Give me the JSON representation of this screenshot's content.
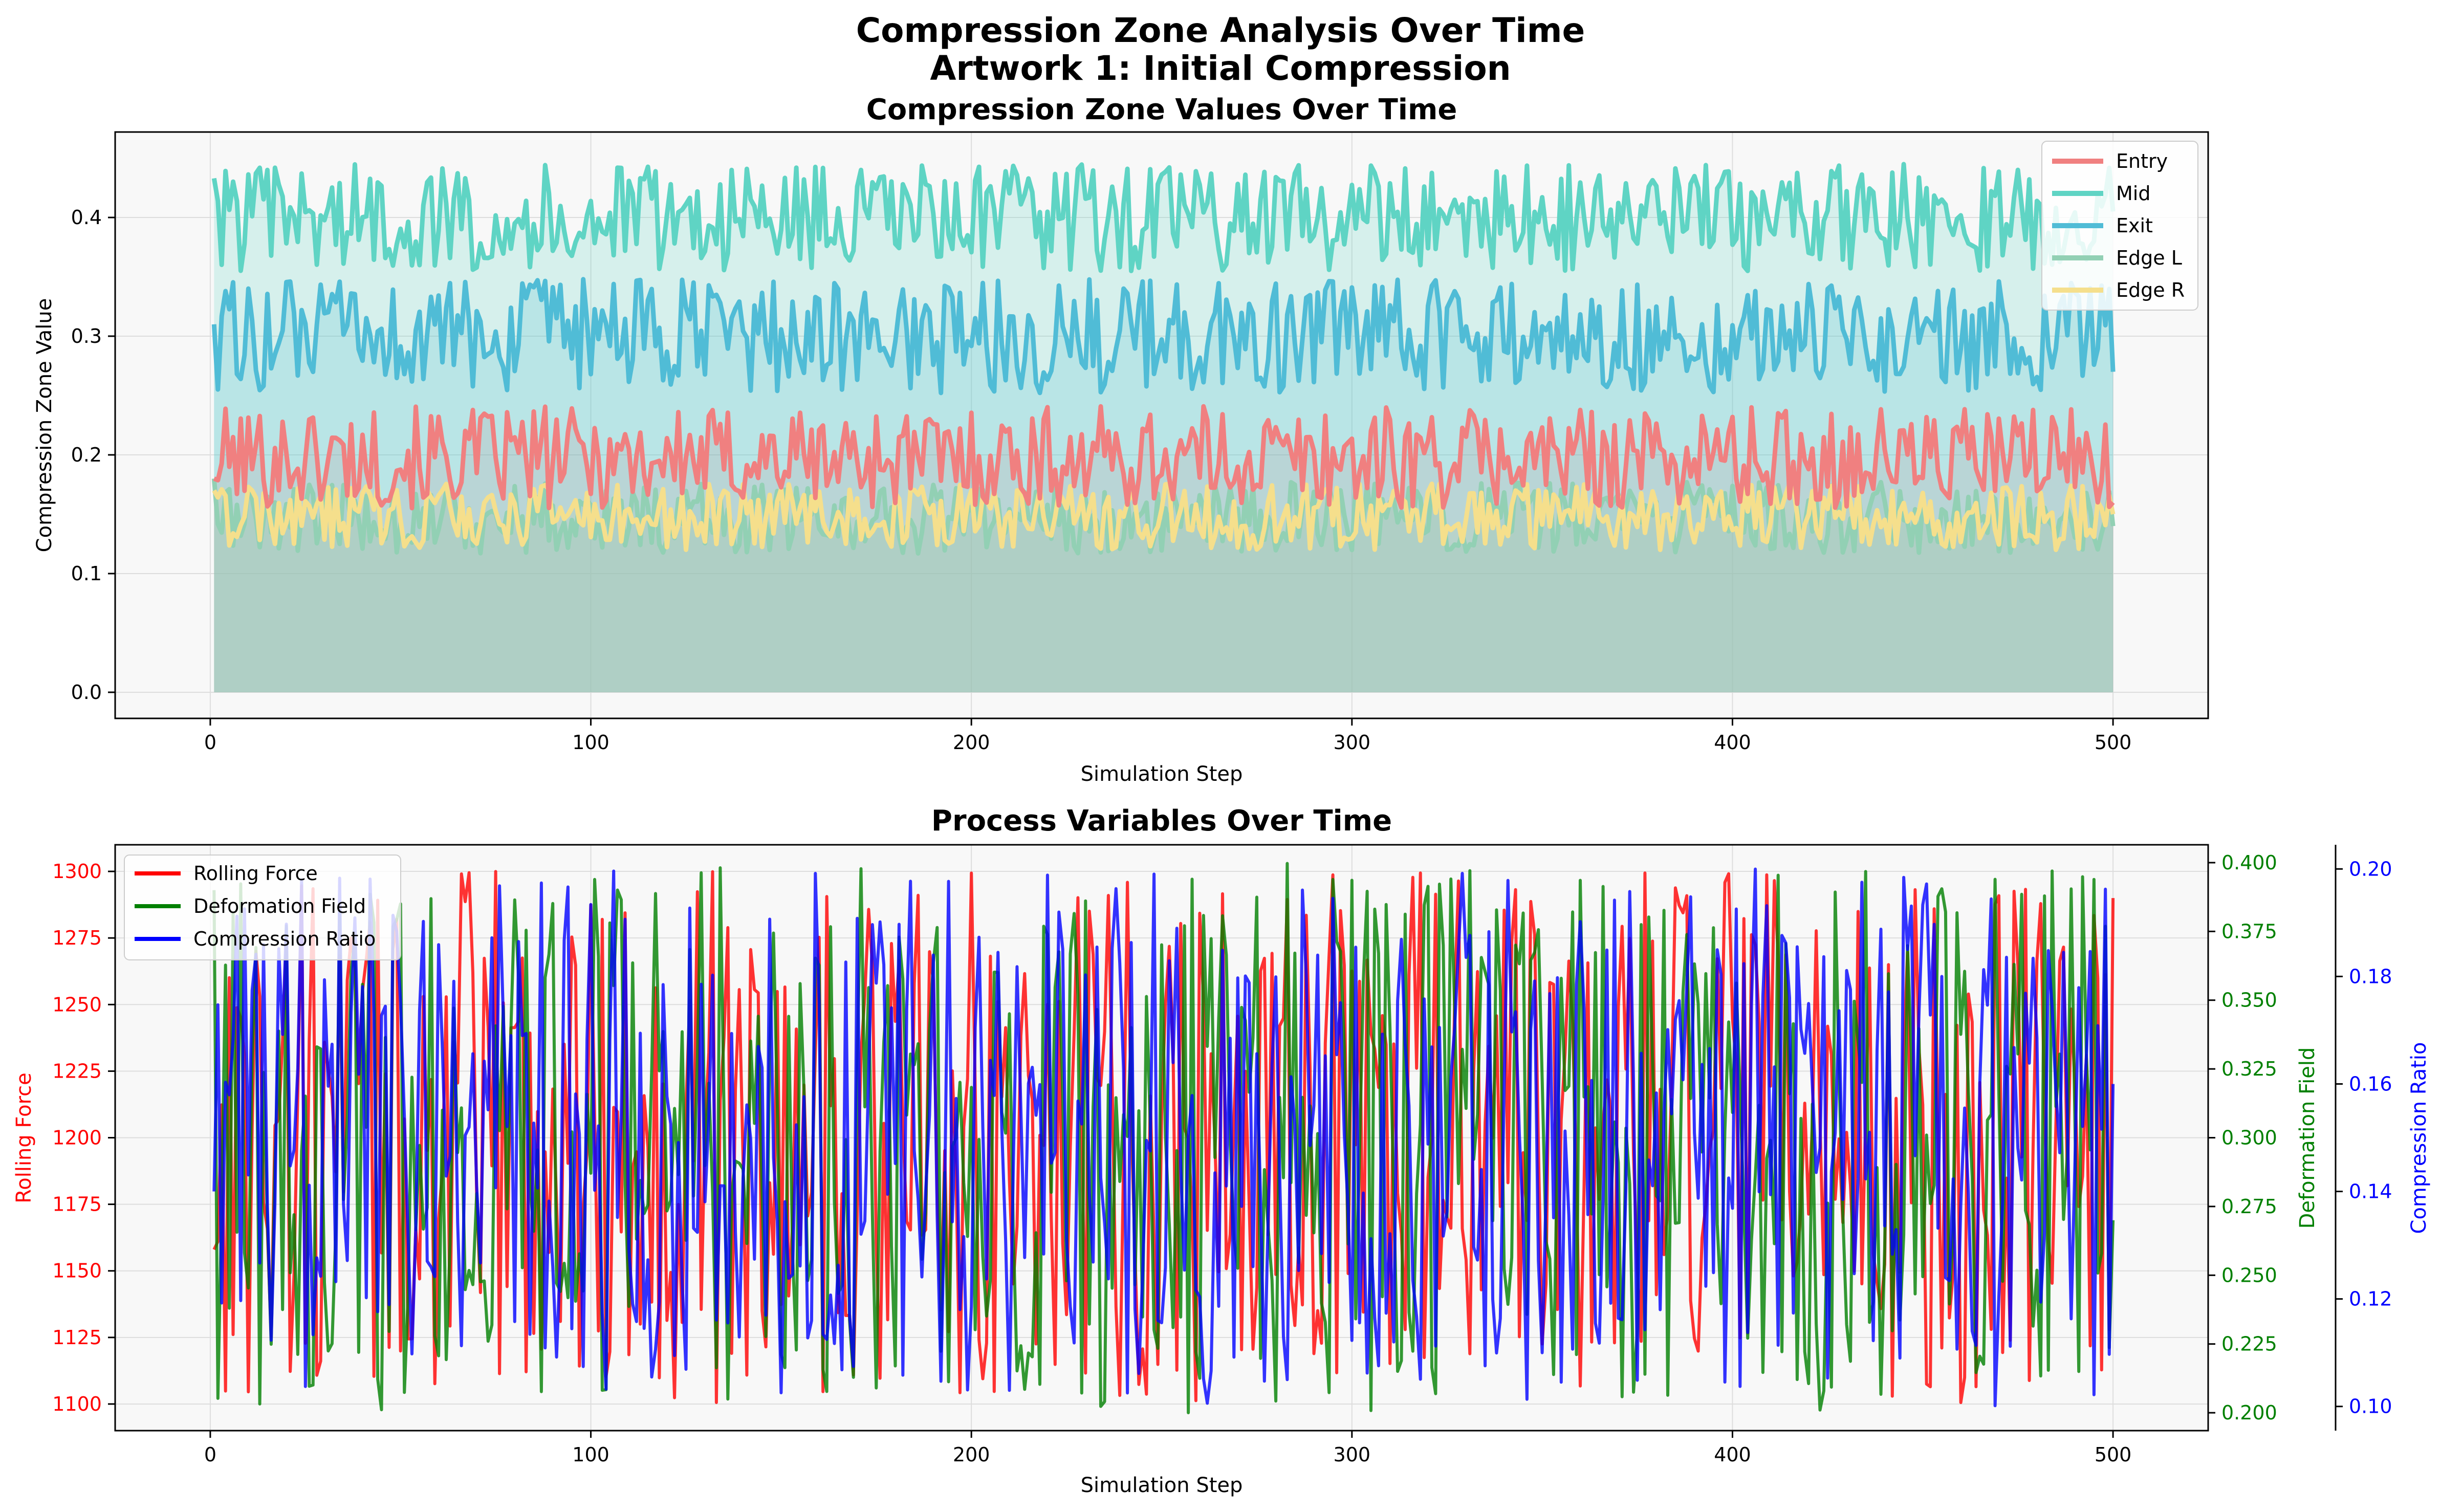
{
  "figure": {
    "suptitle_line1": "Compression Zone Analysis Over Time",
    "suptitle_line2": "Artwork 1: Initial Compression"
  },
  "chart_data": [
    {
      "type": "area",
      "title": "Compression Zone Values Over Time",
      "xlabel": "Simulation Step",
      "ylabel": "Compression Zone Value",
      "xlim": [
        -25,
        525
      ],
      "ylim": [
        -0.022,
        0.472
      ],
      "xticks": [
        0,
        100,
        200,
        300,
        400,
        500
      ],
      "yticks": [
        0.0,
        0.1,
        0.2,
        0.3,
        0.4
      ],
      "grid": true,
      "legend_position": "top-right",
      "x": {
        "start": 1,
        "end": 500,
        "step": 1
      },
      "series": [
        {
          "name": "Entry",
          "color": "#f08080",
          "center": 0.198,
          "amplitude": 0.043,
          "first": 0.18,
          "last": 0.16
        },
        {
          "name": "Mid",
          "color": "#5fd4c4",
          "center": 0.4,
          "amplitude": 0.045,
          "first": 0.433,
          "last": 0.405
        },
        {
          "name": "Exit",
          "color": "#50bcd6",
          "center": 0.3,
          "amplitude": 0.048,
          "first": 0.31,
          "last": 0.27
        },
        {
          "name": "Edge L",
          "color": "#92d0b4",
          "center": 0.147,
          "amplitude": 0.03,
          "first": 0.18,
          "last": 0.14
        },
        {
          "name": "Edge R",
          "color": "#f5df8c",
          "center": 0.148,
          "amplitude": 0.028,
          "first": 0.17,
          "last": 0.15
        }
      ]
    },
    {
      "type": "line",
      "title": "Process Variables Over Time",
      "xlabel": "Simulation Step",
      "xlim": [
        -25,
        525
      ],
      "xticks": [
        0,
        100,
        200,
        300,
        400,
        500
      ],
      "grid": true,
      "legend_position": "top-left",
      "x": {
        "start": 1,
        "end": 500,
        "step": 1
      },
      "axes": [
        {
          "side": "left",
          "label": "Rolling Force",
          "color": "#ff0000",
          "ylim": [
            1090,
            1310
          ],
          "yticks": [
            1100,
            1125,
            1150,
            1175,
            1200,
            1225,
            1250,
            1275,
            1300
          ]
        },
        {
          "side": "right",
          "label": "Deformation Field",
          "color": "#008000",
          "ylim": [
            0.1935,
            0.4065
          ],
          "yticks": [
            0.2,
            0.225,
            0.25,
            0.275,
            0.3,
            0.325,
            0.35,
            0.375,
            0.4
          ]
        },
        {
          "side": "right-outer",
          "label": "Compression Ratio",
          "color": "#0000ff",
          "ylim": [
            0.0955,
            0.2045
          ],
          "yticks": [
            0.1,
            0.12,
            0.14,
            0.16,
            0.18,
            0.2
          ]
        }
      ],
      "series": [
        {
          "name": "Rolling Force",
          "color": "#ff0000",
          "axis": 0,
          "range": [
            1100,
            1300
          ],
          "first": 1158,
          "last": 1290
        },
        {
          "name": "Deformation Field",
          "color": "#008000",
          "axis": 1,
          "range": [
            0.2,
            0.4
          ],
          "first": 0.39,
          "last": 0.27
        },
        {
          "name": "Compression Ratio",
          "color": "#0000ff",
          "axis": 2,
          "range": [
            0.1,
            0.2
          ],
          "first": 0.14,
          "last": 0.16
        }
      ]
    }
  ]
}
